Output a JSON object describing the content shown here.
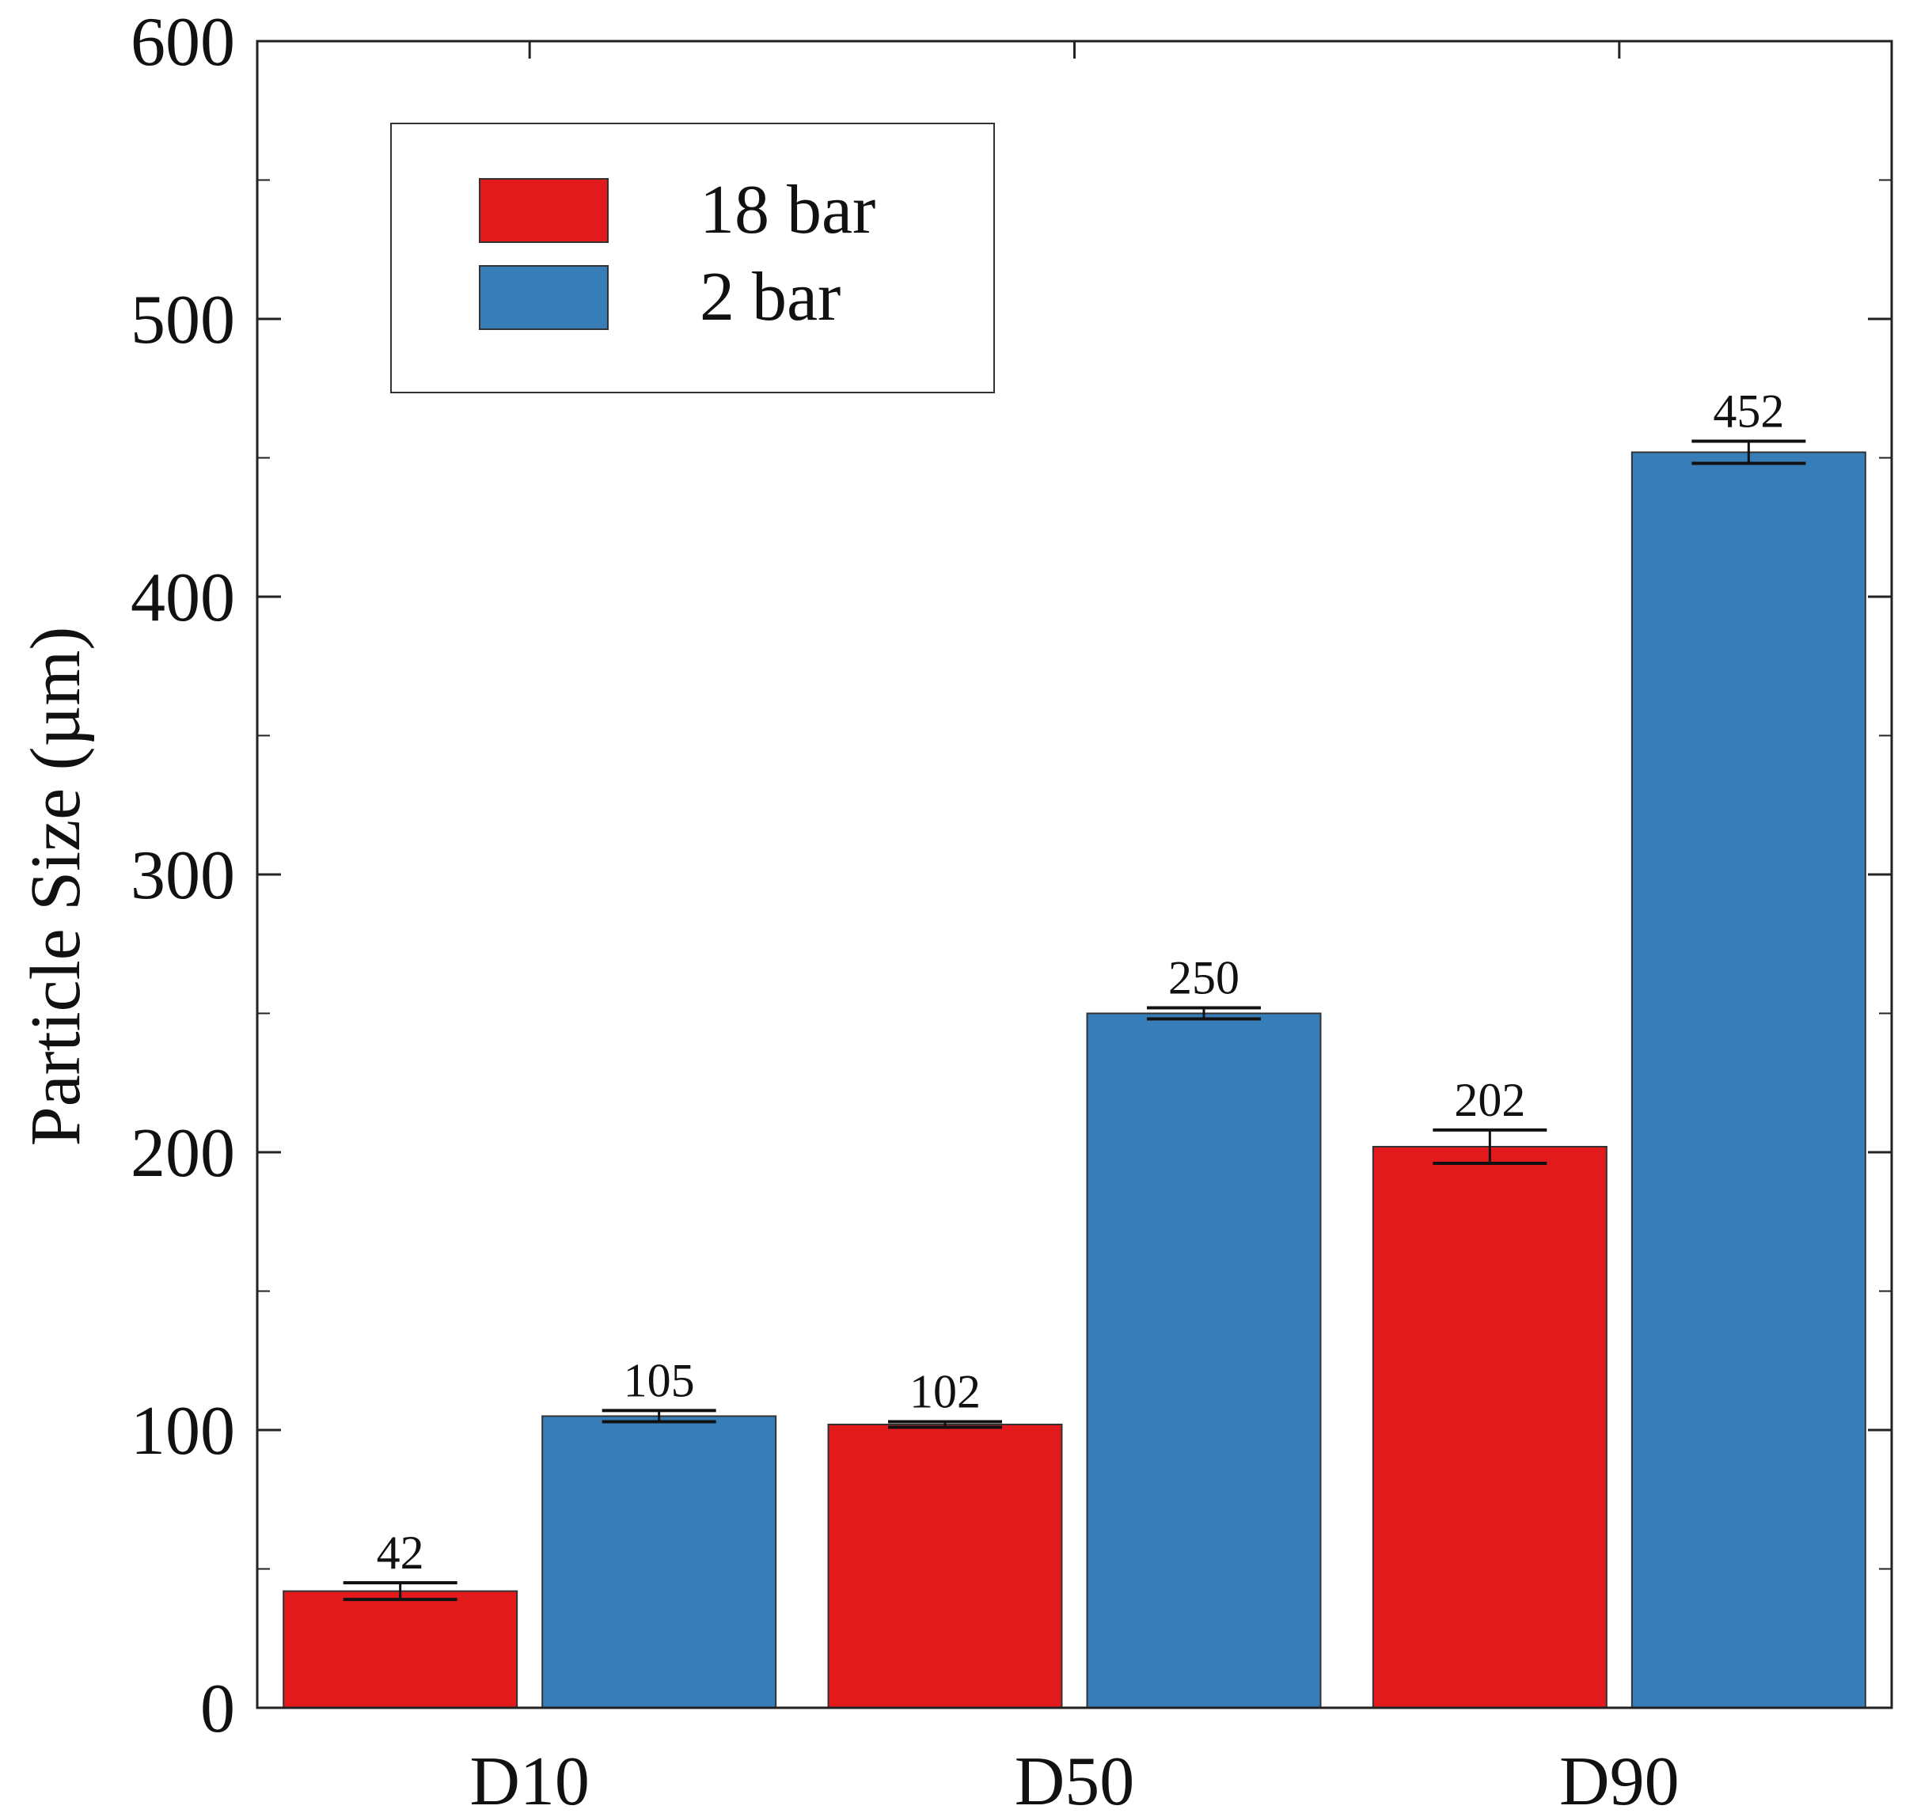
{
  "chart_data": {
    "type": "bar",
    "title": "",
    "xlabel": "",
    "ylabel": "Particle Size (µm)",
    "categories": [
      "D10",
      "D50",
      "D90"
    ],
    "ylim": [
      0,
      600
    ],
    "y_ticks": [
      0,
      100,
      200,
      300,
      400,
      500,
      600
    ],
    "grid": false,
    "legend_position": "top-left",
    "series": [
      {
        "name": "18 bar",
        "color": "#e31a1c",
        "values": [
          42,
          102,
          202
        ],
        "errors": [
          3,
          1,
          6
        ],
        "labels": [
          "42",
          "102",
          "202"
        ]
      },
      {
        "name": "2 bar",
        "color": "#377eb8",
        "values": [
          105,
          250,
          452
        ],
        "errors": [
          2,
          2,
          4
        ],
        "labels": [
          "105",
          "250",
          "452"
        ]
      }
    ]
  }
}
